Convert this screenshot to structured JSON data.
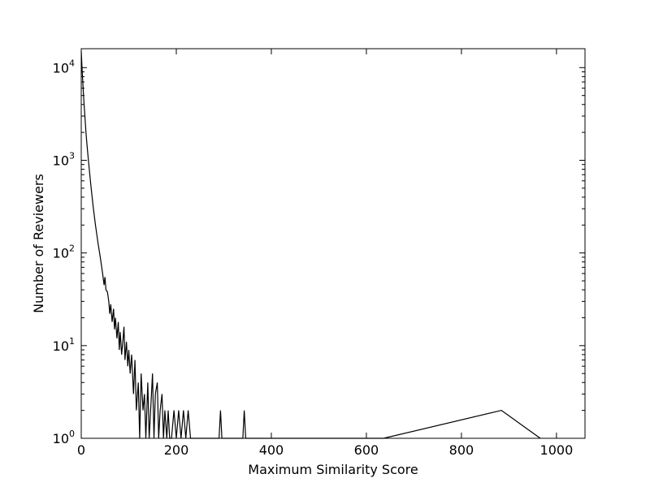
{
  "chart_data": {
    "type": "line",
    "title": "",
    "xlabel": "Maximum Similarity Score",
    "ylabel": "Number of Reviewers",
    "xlim": [
      0,
      1060
    ],
    "ylim": [
      1,
      16000
    ],
    "y_scale": "log",
    "grid": false,
    "legend": "none",
    "line_color": "#000000",
    "x_ticks": [
      0,
      200,
      400,
      600,
      800,
      1000
    ],
    "x_tick_labels": [
      "0",
      "200",
      "400",
      "600",
      "800",
      "1000"
    ],
    "y_ticks": [
      1,
      10,
      100,
      1000,
      10000
    ],
    "y_tick_labels": [
      {
        "base": "10",
        "exp": "0"
      },
      {
        "base": "10",
        "exp": "1"
      },
      {
        "base": "10",
        "exp": "2"
      },
      {
        "base": "10",
        "exp": "3"
      },
      {
        "base": "10",
        "exp": "4"
      }
    ],
    "series": [
      {
        "x": [
          0,
          2,
          4,
          6,
          8,
          10,
          12,
          15,
          20,
          25,
          30,
          35,
          40,
          45,
          48,
          50,
          52,
          55,
          58,
          60,
          62,
          65,
          68,
          70,
          72,
          75,
          78,
          80,
          82,
          85,
          88,
          90,
          92,
          95,
          98,
          100,
          103,
          106,
          110,
          113,
          116,
          120,
          123,
          126,
          130,
          133,
          136,
          140,
          143,
          146,
          150,
          153,
          156,
          160,
          163,
          166,
          170,
          173,
          176,
          180,
          183,
          186,
          190,
          195,
          200,
          205,
          210,
          215,
          220,
          225,
          230,
          235,
          240,
          290,
          293,
          296,
          340,
          343,
          346,
          636,
          884,
          966
        ],
        "y": [
          15000,
          9000,
          6000,
          4000,
          2800,
          2000,
          1500,
          1000,
          550,
          320,
          200,
          130,
          90,
          60,
          45,
          55,
          40,
          38,
          30,
          22,
          28,
          18,
          25,
          15,
          20,
          12,
          18,
          9,
          14,
          8,
          12,
          16,
          7,
          11,
          6,
          9,
          5,
          8,
          3,
          7,
          2,
          4,
          1,
          5,
          2,
          3,
          1,
          4,
          1,
          2,
          5,
          1,
          3,
          4,
          1,
          2,
          3,
          1,
          2,
          1,
          2,
          1,
          1,
          2,
          1,
          2,
          1,
          2,
          1,
          2,
          1,
          1,
          1,
          1,
          2,
          1,
          1,
          2,
          1,
          1,
          2,
          1
        ]
      }
    ]
  }
}
